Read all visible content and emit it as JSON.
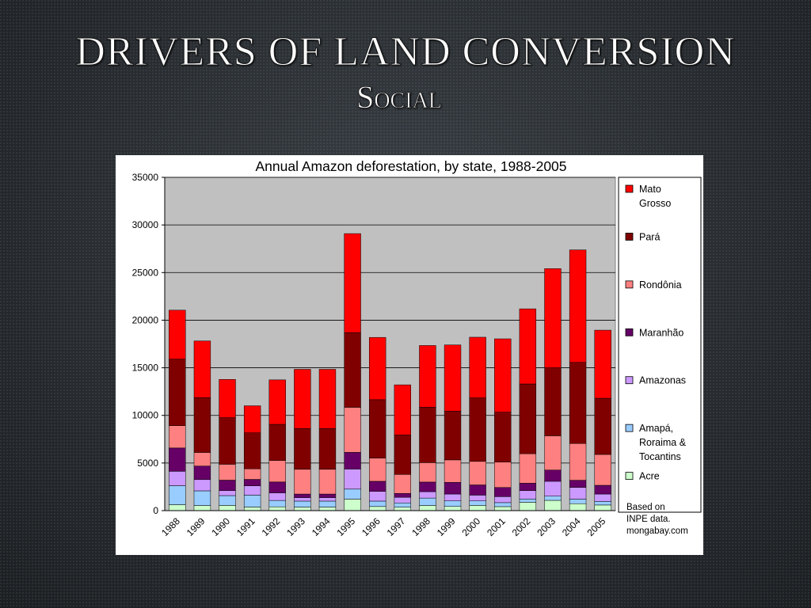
{
  "slide": {
    "title": "DRIVERS OF LAND CONVERSION",
    "subtitle": "Social"
  },
  "chart_data": {
    "type": "bar",
    "stacked": true,
    "title": "Annual Amazon deforestation, by state, 1988-2005",
    "xlabel": "",
    "ylabel": "",
    "ylim": [
      0,
      35000
    ],
    "yticks": [
      0,
      5000,
      10000,
      15000,
      20000,
      25000,
      30000,
      35000
    ],
    "grid": true,
    "legend_position": "right",
    "categories": [
      "1988",
      "1989",
      "1990",
      "1991",
      "1992",
      "1993",
      "1994",
      "1995",
      "1996",
      "1997",
      "1998",
      "1999",
      "2000",
      "2001",
      "2002",
      "2003",
      "2004",
      "2005"
    ],
    "series": [
      {
        "name": "Acre",
        "color": "#ccffcc",
        "values": [
          620,
          540,
          550,
          380,
          400,
          370,
          370,
          1210,
          430,
          360,
          540,
          440,
          550,
          420,
          880,
          1080,
          730,
          590
        ]
      },
      {
        "name": "Amapá, Roraima & Tocantins",
        "color": "#99ccff",
        "values": [
          2000,
          1540,
          1030,
          1250,
          670,
          630,
          630,
          1050,
          570,
          450,
          780,
          580,
          470,
          420,
          340,
          440,
          480,
          380
        ]
      },
      {
        "name": "Amazonas",
        "color": "#cc99ff",
        "values": [
          1510,
          1180,
          520,
          980,
          800,
          370,
          370,
          2110,
          1020,
          590,
          670,
          720,
          610,
          630,
          890,
          1560,
          1230,
          770
        ]
      },
      {
        "name": "Maranhão",
        "color": "#660066",
        "values": [
          2450,
          1420,
          1100,
          670,
          1140,
          370,
          370,
          1750,
          1060,
          410,
          1010,
          1230,
          1070,
          960,
          770,
          1180,
          750,
          920
        ]
      },
      {
        "name": "Rondônia",
        "color": "#ff8080",
        "values": [
          2340,
          1430,
          1670,
          1110,
          2260,
          2600,
          2600,
          4730,
          2430,
          1990,
          2040,
          2360,
          2470,
          2670,
          3100,
          3600,
          3860,
          3240
        ]
      },
      {
        "name": "Pará",
        "color": "#800000",
        "values": [
          6990,
          5750,
          4890,
          3780,
          3790,
          4280,
          4280,
          7850,
          6140,
          4140,
          5830,
          5110,
          6670,
          5240,
          7320,
          7140,
          8520,
          5900
        ]
      },
      {
        "name": "Mato Grosso",
        "color": "#ff0000",
        "values": [
          5140,
          5960,
          4020,
          2840,
          4670,
          6220,
          6220,
          10390,
          6540,
          5270,
          6470,
          6960,
          6370,
          7700,
          7890,
          10410,
          11810,
          7150
        ]
      }
    ],
    "note": [
      "Based on",
      "INPE data.",
      "mongabay.com"
    ]
  }
}
